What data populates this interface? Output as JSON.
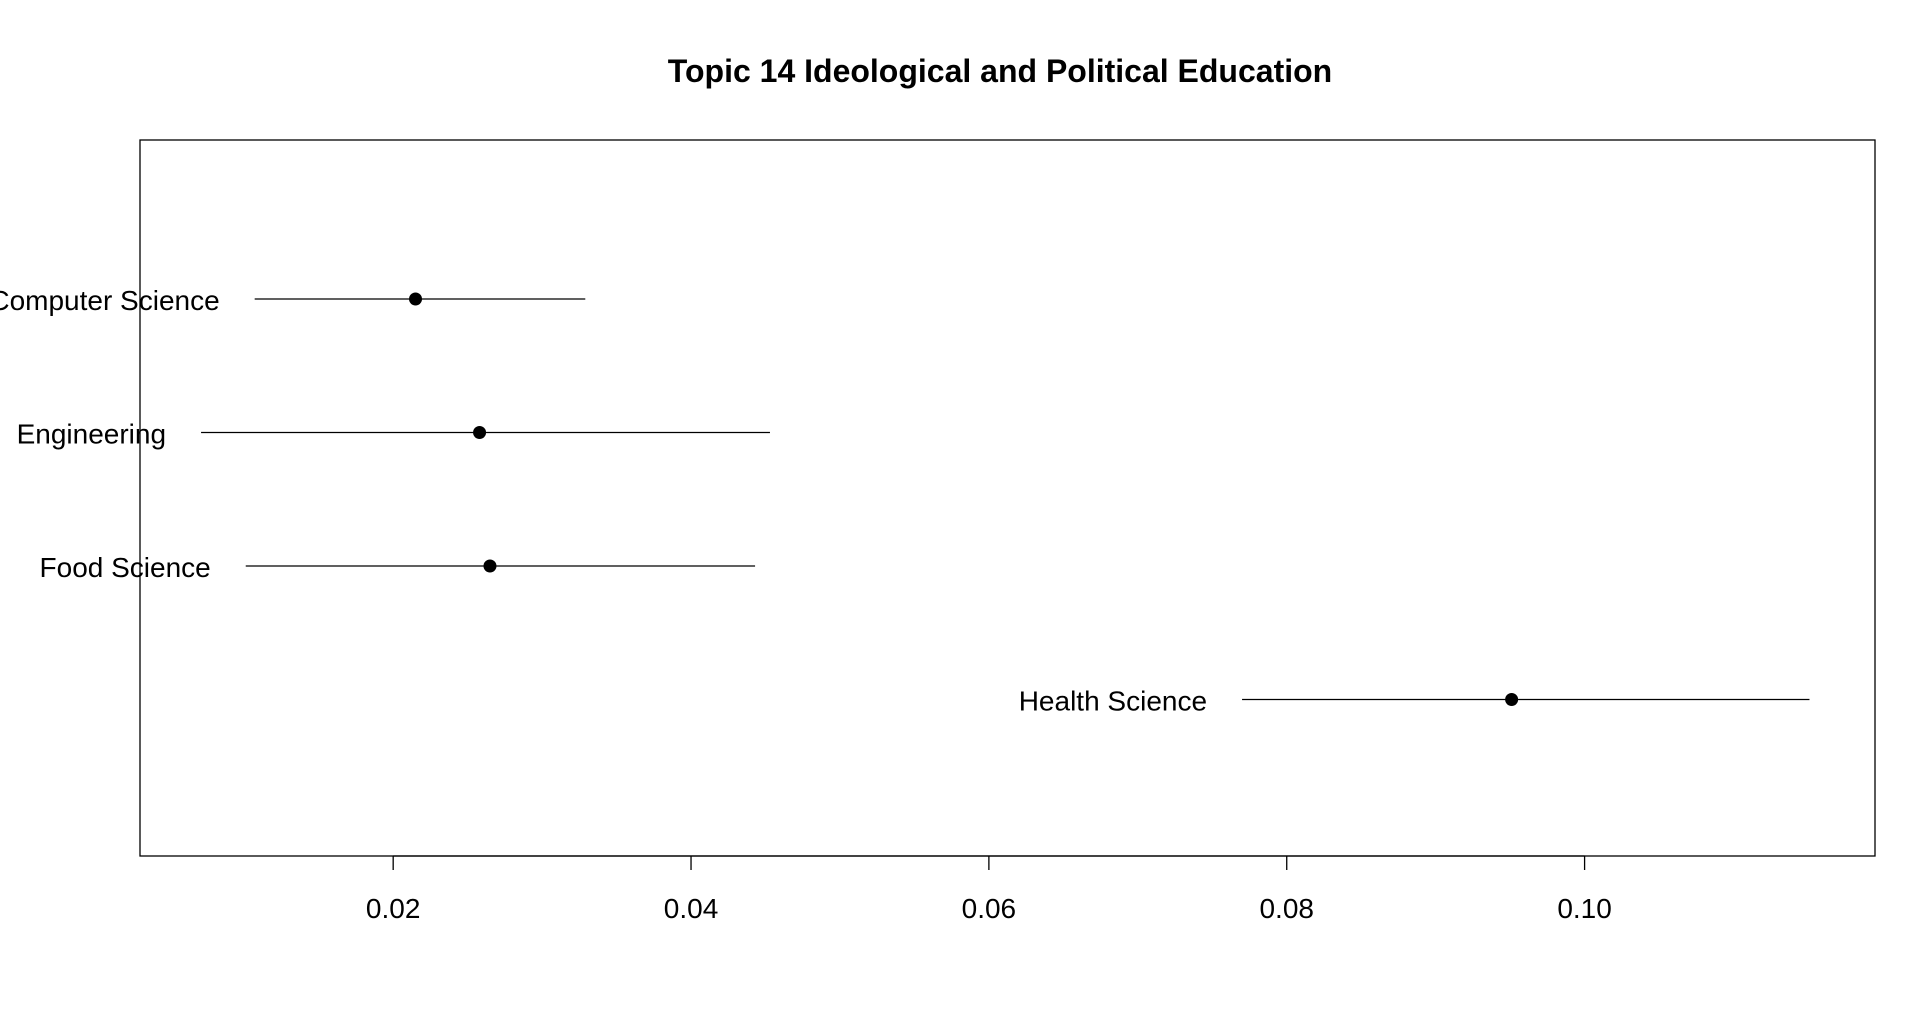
{
  "chart_data": {
    "type": "scatter",
    "subtype": "point-estimate-with-interval",
    "title": "Topic 14 Ideological and Political Education",
    "xlabel": "",
    "ylabel": "",
    "xlim": [
      0.003,
      0.1195
    ],
    "x_ticks": [
      0.02,
      0.04,
      0.06,
      0.08,
      0.1
    ],
    "x_tick_labels": [
      "0.02",
      "0.04",
      "0.06",
      "0.08",
      "0.10"
    ],
    "grid": false,
    "legend": "none",
    "points": [
      {
        "label": "Computer Science",
        "estimate": 0.0215,
        "lower": 0.0107,
        "upper": 0.0329
      },
      {
        "label": "Engineering",
        "estimate": 0.0258,
        "lower": 0.0071,
        "upper": 0.0453
      },
      {
        "label": "Food Science",
        "estimate": 0.0265,
        "lower": 0.0101,
        "upper": 0.0443
      },
      {
        "label": "Health Science",
        "estimate": 0.0951,
        "lower": 0.077,
        "upper": 0.1151
      }
    ],
    "colors": {
      "point": "#000000",
      "interval": "#000000",
      "frame": "#000000"
    }
  }
}
